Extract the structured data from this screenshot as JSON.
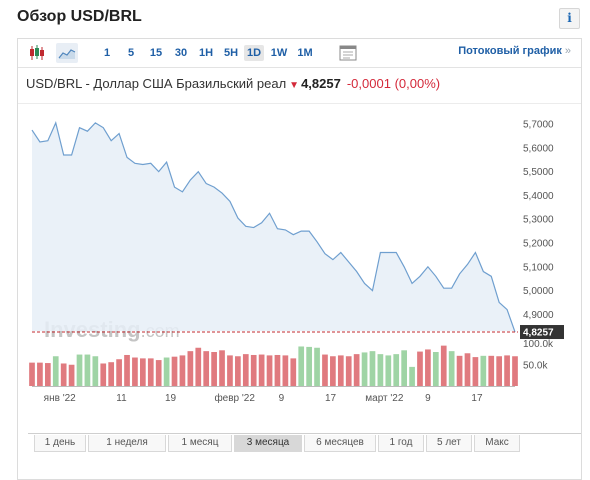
{
  "page": {
    "title": "Обзор USD/BRL"
  },
  "info_icon": {
    "glyph": "i",
    "name": "info-icon"
  },
  "toolbar": {
    "icons": [
      "candlestick-chart-icon",
      "area-chart-icon",
      "indicators-icon"
    ],
    "timeframes": [
      "1",
      "5",
      "15",
      "30",
      "1H",
      "5H",
      "1D",
      "1W",
      "1M"
    ],
    "active_timeframe": "1D",
    "streaming_label": "Потоковый график",
    "streaming_chevron": "»"
  },
  "quote": {
    "label": "USD/BRL - Доллар США Бразильский реал",
    "direction_arrow": "▼",
    "price": "4,8257",
    "change": "-0,0001",
    "change_percent": "(0,00%)"
  },
  "watermark": {
    "brand": "Investing",
    "suffix": ".com"
  },
  "ranges": [
    "1 день",
    "1 неделя",
    "1 месяц",
    "3 месяца",
    "6 месяцев",
    "1 год",
    "5 лет",
    "Макс"
  ],
  "active_range": "3 месяца",
  "colors": {
    "line": "#6f9fcf",
    "area": "#e6eef7",
    "last_price_line": "#c0292f",
    "last_price_label_bg": "#333333",
    "volume_up": "#9fd4a5",
    "volume_down": "#e07a7f",
    "link": "#1f5fa6",
    "down_text": "#d4293a"
  },
  "chart_data": {
    "type": "area",
    "title": "USD/BRL",
    "series": [
      {
        "name": "USD/BRL",
        "values": [
          5.675,
          5.625,
          5.63,
          5.705,
          5.57,
          5.57,
          5.685,
          5.67,
          5.705,
          5.685,
          5.63,
          5.66,
          5.56,
          5.535,
          5.53,
          5.535,
          5.5,
          5.54,
          5.435,
          5.415,
          5.465,
          5.5,
          5.45,
          5.435,
          5.41,
          5.375,
          5.305,
          5.27,
          5.265,
          5.285,
          5.325,
          5.26,
          5.255,
          5.235,
          5.25,
          5.25,
          5.205,
          5.155,
          5.13,
          5.16,
          5.12,
          5.08,
          5.03,
          5.0,
          5.16,
          5.16,
          5.16,
          5.1,
          5.03,
          5.06,
          5.1,
          5.06,
          5.01,
          5.01,
          5.07,
          5.11,
          5.16,
          5.08,
          5.06,
          4.95,
          4.92,
          4.826
        ]
      }
    ],
    "volume": {
      "up": [
        false,
        false,
        false,
        true,
        false,
        false,
        true,
        true,
        true,
        false,
        false,
        false,
        false,
        false,
        false,
        false,
        false,
        true,
        false,
        false,
        false,
        false,
        false,
        false,
        false,
        false,
        false,
        false,
        false,
        false,
        false,
        false,
        false,
        false,
        true,
        true,
        true,
        false,
        false,
        false,
        false,
        false,
        true,
        true,
        true,
        true,
        true,
        true,
        true,
        false,
        false,
        true,
        false,
        true,
        false,
        false,
        false,
        true,
        false,
        false,
        false,
        false
      ],
      "values": [
        55,
        55,
        54,
        70,
        53,
        50,
        74,
        74,
        70,
        53,
        56,
        63,
        73,
        67,
        65,
        65,
        61,
        67,
        69,
        72,
        82,
        90,
        82,
        80,
        84,
        72,
        70,
        75,
        73,
        74,
        72,
        73,
        72,
        65,
        93,
        92,
        90,
        74,
        70,
        72,
        70,
        75,
        79,
        82,
        75,
        72,
        75,
        84,
        45,
        81,
        86,
        80,
        95,
        82,
        71,
        77,
        68,
        71,
        71,
        70,
        72,
        70
      ]
    },
    "y_ticks": [
      "5,7000",
      "5,6000",
      "5,5000",
      "5,4000",
      "5,3000",
      "5,2000",
      "5,1000",
      "5,0000",
      "4,9000"
    ],
    "y_tick_values": [
      5.7,
      5.6,
      5.5,
      5.4,
      5.3,
      5.2,
      5.1,
      5.0,
      4.9
    ],
    "ylim": [
      4.83,
      5.755
    ],
    "volume_ticks": [
      "100.0k",
      "50.0k"
    ],
    "volume_tick_values": [
      100,
      50
    ],
    "volume_ylim": [
      0,
      120
    ],
    "x_labels": [
      {
        "label": "янв '22",
        "index": 3.5
      },
      {
        "label": "11",
        "index": 11.3
      },
      {
        "label": "19",
        "index": 17.5
      },
      {
        "label": "февр '22",
        "index": 25.6
      },
      {
        "label": "9",
        "index": 31.5
      },
      {
        "label": "17",
        "index": 37.7
      },
      {
        "label": "март '22",
        "index": 44.5
      },
      {
        "label": "9",
        "index": 50
      },
      {
        "label": "17",
        "index": 56.2
      }
    ],
    "last_price_label": "4,8257",
    "last_price_value": 4.8257,
    "grid": false,
    "legend": "none"
  }
}
